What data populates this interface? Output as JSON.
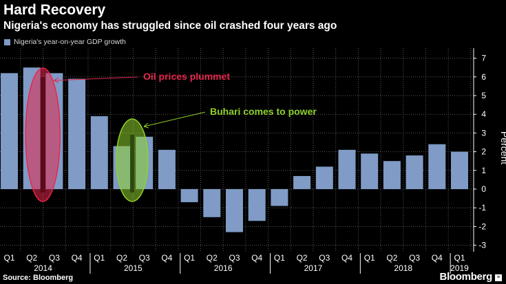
{
  "header": {
    "title": "Hard Recovery",
    "subtitle": "Nigeria's economy has struggled since oil crashed four years ago"
  },
  "footer": {
    "source": "Source: Bloomberg",
    "brand": "Bloomberg",
    "brand_badge": "≡"
  },
  "colors": {
    "bar": "#7f9bc6",
    "grid": "#5a5a5a",
    "oil_annotation": "#e8264d",
    "buhari_annotation": "#8fd12b"
  },
  "chart_data": {
    "type": "bar",
    "title": "Hard Recovery",
    "subtitle": "Nigeria's economy has struggled since oil crashed four years ago",
    "legend": [
      "Nigeria's year-on-year GDP growth"
    ],
    "legend_position": "top-left",
    "ylabel": "Percent",
    "ylabel_position": "right",
    "ylim": [
      -3.3,
      7.4
    ],
    "yticks": [
      7,
      6,
      5,
      4,
      3,
      2,
      1,
      0,
      -1,
      -2,
      -3
    ],
    "ytick_labels": [
      "7",
      "6",
      "5",
      "4",
      "3",
      "2",
      "1",
      "0",
      "-1",
      "-2",
      "-3"
    ],
    "grid": true,
    "categories": [
      "Q1",
      "Q2",
      "Q3",
      "Q4",
      "Q1",
      "Q2",
      "Q3",
      "Q4",
      "Q1",
      "Q2",
      "Q3",
      "Q4",
      "Q1",
      "Q2",
      "Q3",
      "Q4",
      "Q1",
      "Q2",
      "Q3",
      "Q4",
      "Q1"
    ],
    "values": [
      6.2,
      6.5,
      6.2,
      5.9,
      3.9,
      2.3,
      2.8,
      2.1,
      -0.7,
      -1.5,
      -2.3,
      -1.7,
      -0.9,
      0.7,
      1.2,
      2.1,
      1.9,
      1.5,
      1.8,
      2.4,
      2.0
    ],
    "years": [
      {
        "label": "2014",
        "start": 0,
        "end": 3
      },
      {
        "label": "2015",
        "start": 4,
        "end": 7
      },
      {
        "label": "2016",
        "start": 8,
        "end": 11
      },
      {
        "label": "2017",
        "start": 12,
        "end": 15
      },
      {
        "label": "2018",
        "start": 16,
        "end": 19
      },
      {
        "label": "2019",
        "start": 20,
        "end": 20
      }
    ],
    "annotations": [
      {
        "text": "Oil prices plummet",
        "bar_index": 1,
        "color_key": "oil_annotation"
      },
      {
        "text": "Buhari comes to power",
        "bar_index": 5,
        "color_key": "buhari_annotation"
      }
    ]
  }
}
